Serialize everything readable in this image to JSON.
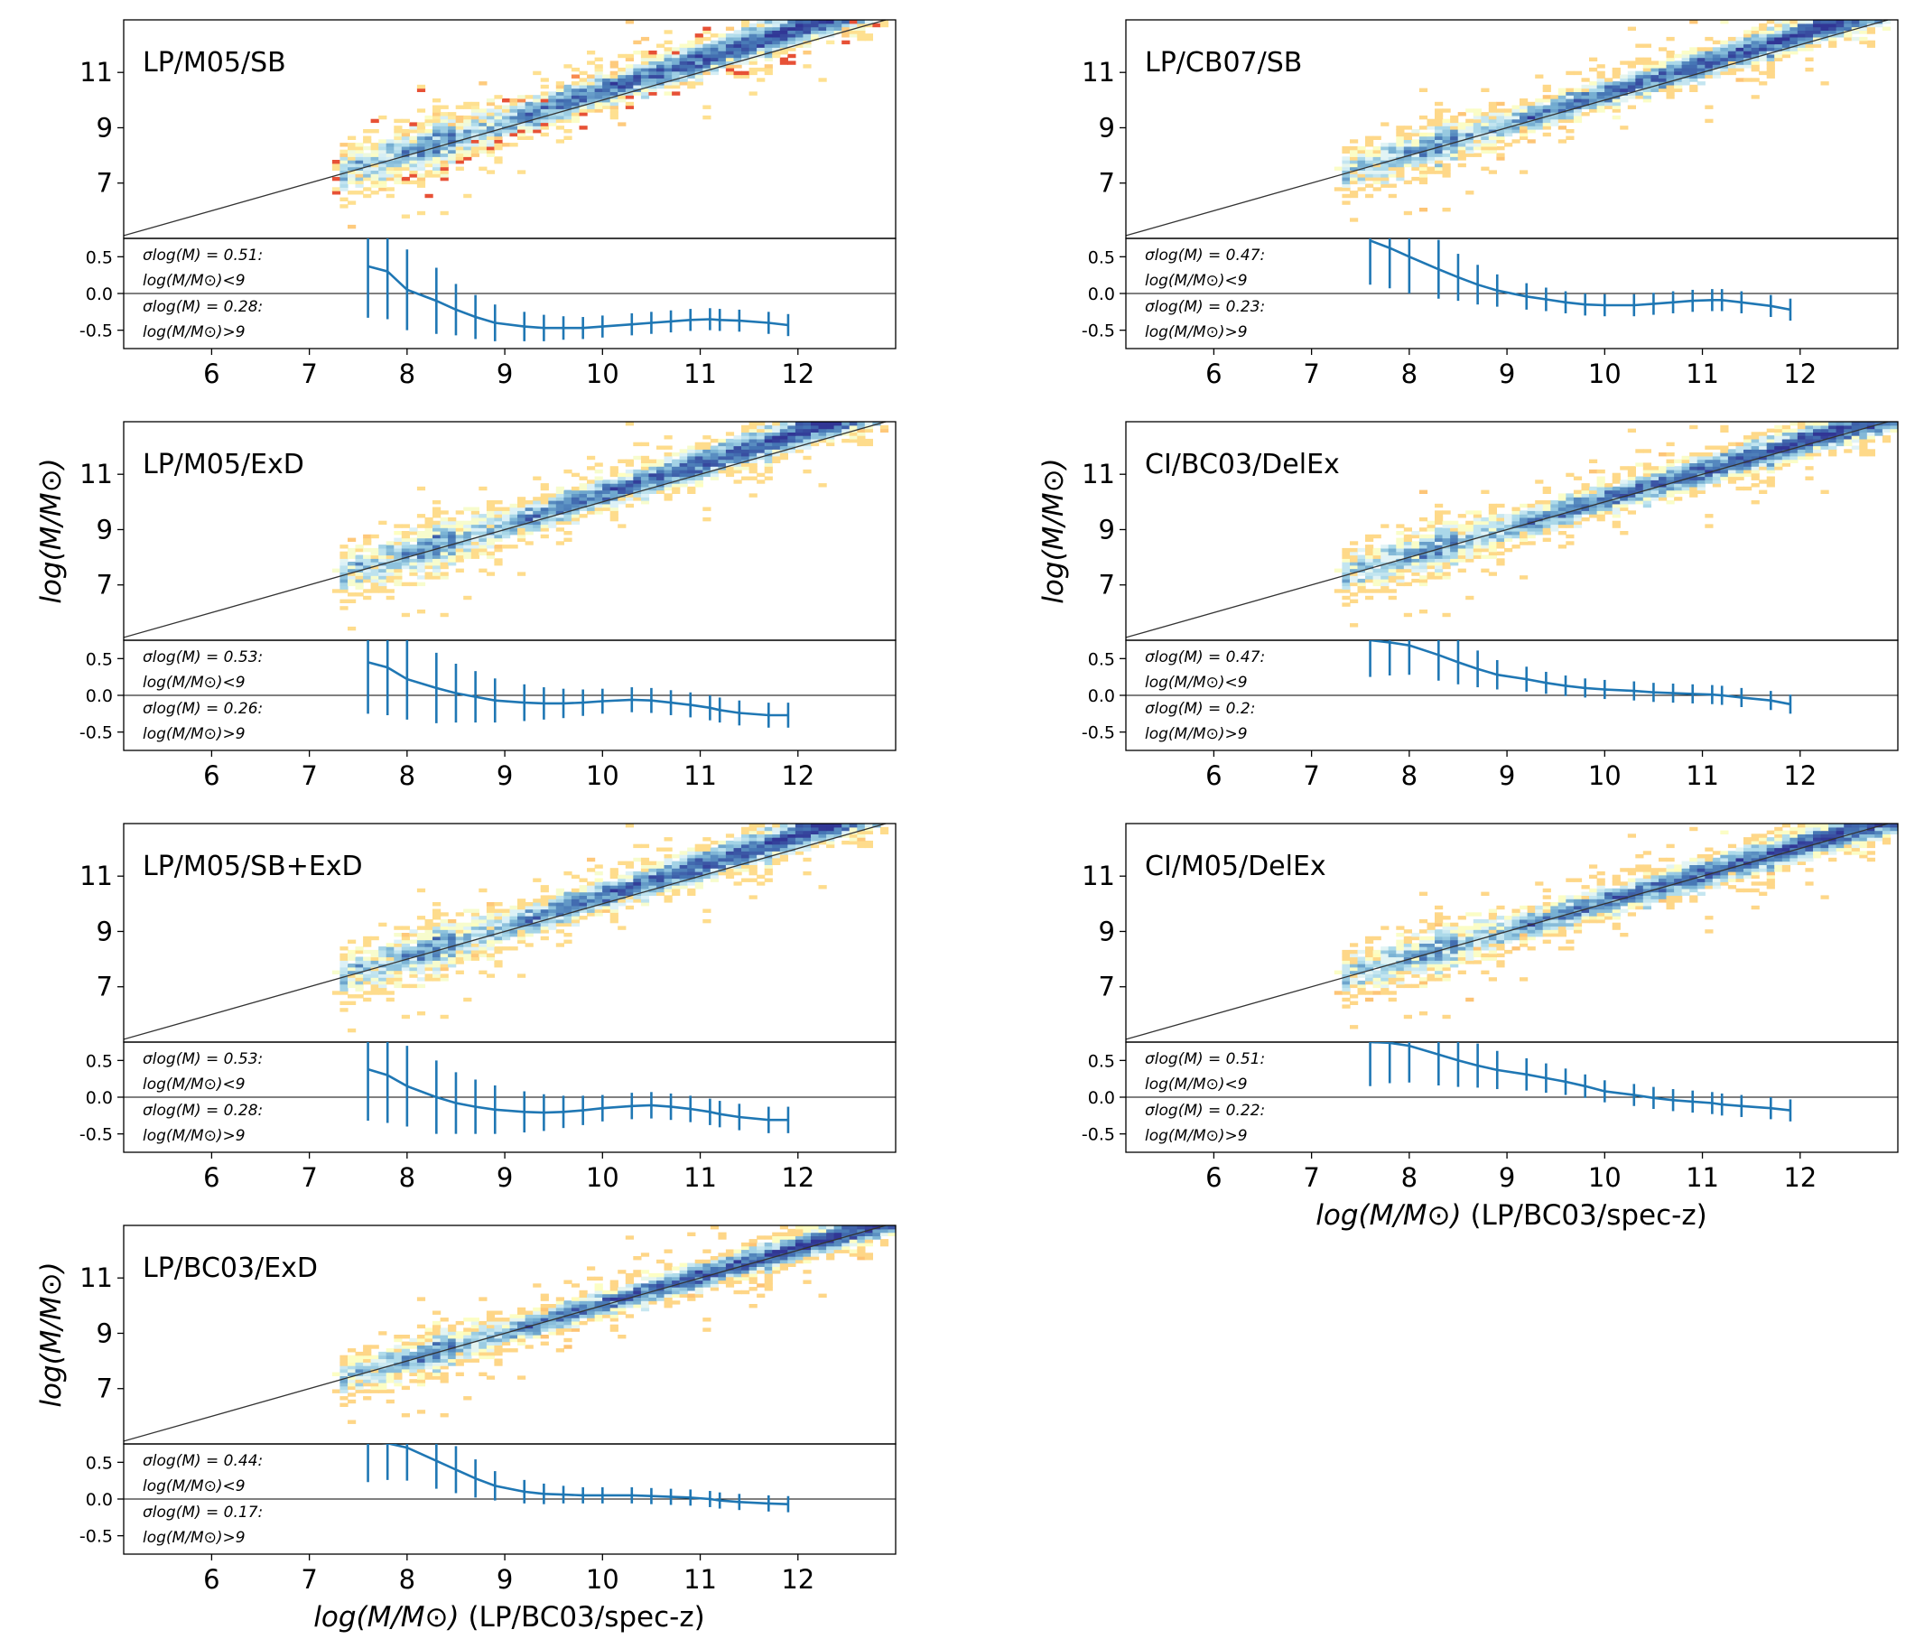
{
  "figure": {
    "ylabel": "log(M/M⊙)",
    "xlabel": "log(M/M⊙) (LP/BC03/spec-z)",
    "main_yticks": [
      "7",
      "9",
      "11"
    ],
    "resid_yticks": [
      "0.5",
      "0.0",
      "-0.5"
    ],
    "xticks": [
      "6",
      "7",
      "8",
      "9",
      "10",
      "11",
      "12"
    ]
  },
  "colors": {
    "errorbar": "#1f77b4",
    "one_to_one": "#333333",
    "density_low": "#a50026",
    "density_mid": "#ffffbf",
    "density_high": "#313695"
  },
  "chart_data": [
    {
      "type": "heatmap",
      "title": "LP/M05/SB",
      "xlim": [
        5.1,
        13.0
      ],
      "ylim_main": [
        5.0,
        12.9
      ],
      "ylim_resid": [
        -0.75,
        0.75
      ],
      "scatter_low": "σlog(M) = 0.51:",
      "scatter_low_cond": "log(M/M⊙)<9",
      "scatter_high": "σlog(M) = 0.28:",
      "scatter_high_cond": "log(M/M⊙)>9",
      "resid_x": [
        7.6,
        7.8,
        8.0,
        8.3,
        8.5,
        8.7,
        8.9,
        9.2,
        9.4,
        9.6,
        9.8,
        10.0,
        10.3,
        10.5,
        10.7,
        10.9,
        11.1,
        11.2,
        11.4,
        11.7,
        11.9
      ],
      "resid_mean": [
        0.37,
        0.3,
        0.05,
        -0.1,
        -0.22,
        -0.32,
        -0.4,
        -0.45,
        -0.47,
        -0.47,
        -0.47,
        -0.45,
        -0.42,
        -0.4,
        -0.38,
        -0.36,
        -0.35,
        -0.36,
        -0.37,
        -0.4,
        -0.43
      ],
      "resid_err": [
        0.7,
        0.65,
        0.55,
        0.45,
        0.35,
        0.3,
        0.25,
        0.2,
        0.18,
        0.16,
        0.15,
        0.15,
        0.15,
        0.15,
        0.15,
        0.15,
        0.15,
        0.15,
        0.15,
        0.15,
        0.15
      ]
    },
    {
      "type": "heatmap",
      "title": "LP/CB07/SB",
      "xlim": [
        5.1,
        13.0
      ],
      "ylim_main": [
        5.0,
        12.9
      ],
      "ylim_resid": [
        -0.75,
        0.75
      ],
      "scatter_low": "σlog(M) = 0.47:",
      "scatter_low_cond": "log(M/M⊙)<9",
      "scatter_high": "σlog(M) = 0.23:",
      "scatter_high_cond": "log(M/M⊙)>9",
      "resid_x": [
        7.6,
        7.8,
        8.0,
        8.3,
        8.5,
        8.7,
        8.9,
        9.2,
        9.4,
        9.6,
        9.8,
        10.0,
        10.3,
        10.5,
        10.7,
        10.9,
        11.1,
        11.2,
        11.4,
        11.7,
        11.9
      ],
      "resid_mean": [
        0.72,
        0.62,
        0.5,
        0.33,
        0.22,
        0.12,
        0.04,
        -0.04,
        -0.08,
        -0.12,
        -0.15,
        -0.16,
        -0.16,
        -0.14,
        -0.12,
        -0.1,
        -0.09,
        -0.09,
        -0.12,
        -0.17,
        -0.22
      ],
      "resid_err": [
        0.6,
        0.55,
        0.5,
        0.4,
        0.32,
        0.27,
        0.22,
        0.18,
        0.16,
        0.15,
        0.15,
        0.15,
        0.15,
        0.15,
        0.15,
        0.15,
        0.15,
        0.15,
        0.15,
        0.15,
        0.15
      ]
    },
    {
      "type": "heatmap",
      "title": "LP/M05/ExD",
      "xlim": [
        5.1,
        13.0
      ],
      "ylim_main": [
        5.0,
        12.9
      ],
      "ylim_resid": [
        -0.75,
        0.75
      ],
      "scatter_low": "σlog(M) = 0.53:",
      "scatter_low_cond": "log(M/M⊙)<9",
      "scatter_high": "σlog(M) = 0.26:",
      "scatter_high_cond": "log(M/M⊙)>9",
      "resid_x": [
        7.6,
        7.8,
        8.0,
        8.3,
        8.5,
        8.7,
        8.9,
        9.2,
        9.4,
        9.6,
        9.8,
        10.0,
        10.3,
        10.5,
        10.7,
        10.9,
        11.1,
        11.2,
        11.4,
        11.7,
        11.9
      ],
      "resid_mean": [
        0.45,
        0.38,
        0.22,
        0.1,
        0.03,
        -0.02,
        -0.07,
        -0.1,
        -0.11,
        -0.11,
        -0.1,
        -0.08,
        -0.06,
        -0.07,
        -0.1,
        -0.13,
        -0.17,
        -0.2,
        -0.24,
        -0.27,
        -0.27
      ],
      "resid_err": [
        0.7,
        0.65,
        0.55,
        0.48,
        0.4,
        0.35,
        0.3,
        0.25,
        0.22,
        0.2,
        0.18,
        0.17,
        0.17,
        0.17,
        0.17,
        0.17,
        0.17,
        0.17,
        0.17,
        0.17,
        0.17
      ]
    },
    {
      "type": "heatmap",
      "title": "CI/BC03/DelEx",
      "xlim": [
        5.1,
        13.0
      ],
      "ylim_main": [
        5.0,
        12.9
      ],
      "ylim_resid": [
        -0.75,
        0.75
      ],
      "scatter_low": "σlog(M) = 0.47:",
      "scatter_low_cond": "log(M/M⊙)<9",
      "scatter_high": "σlog(M) = 0.2:",
      "scatter_high_cond": "log(M/M⊙)>9",
      "resid_x": [
        7.6,
        7.8,
        8.0,
        8.3,
        8.5,
        8.7,
        8.9,
        9.2,
        9.4,
        9.6,
        9.8,
        10.0,
        10.3,
        10.5,
        10.7,
        10.9,
        11.1,
        11.2,
        11.4,
        11.7,
        11.9
      ],
      "resid_mean": [
        0.75,
        0.72,
        0.68,
        0.55,
        0.45,
        0.36,
        0.28,
        0.22,
        0.17,
        0.13,
        0.1,
        0.08,
        0.06,
        0.04,
        0.03,
        0.02,
        0.01,
        0.0,
        -0.03,
        -0.07,
        -0.12
      ],
      "resid_err": [
        0.5,
        0.45,
        0.4,
        0.35,
        0.3,
        0.25,
        0.2,
        0.17,
        0.15,
        0.14,
        0.13,
        0.13,
        0.13,
        0.13,
        0.13,
        0.13,
        0.13,
        0.13,
        0.13,
        0.13,
        0.13
      ]
    },
    {
      "type": "heatmap",
      "title": "LP/M05/SB+ExD",
      "xlim": [
        5.1,
        13.0
      ],
      "ylim_main": [
        5.0,
        12.9
      ],
      "ylim_resid": [
        -0.75,
        0.75
      ],
      "scatter_low": "σlog(M) = 0.53:",
      "scatter_low_cond": "log(M/M⊙)<9",
      "scatter_high": "σlog(M) = 0.28:",
      "scatter_high_cond": "log(M/M⊙)>9",
      "resid_x": [
        7.6,
        7.8,
        8.0,
        8.3,
        8.5,
        8.7,
        8.9,
        9.2,
        9.4,
        9.6,
        9.8,
        10.0,
        10.3,
        10.5,
        10.7,
        10.9,
        11.1,
        11.2,
        11.4,
        11.7,
        11.9
      ],
      "resid_mean": [
        0.38,
        0.3,
        0.15,
        0.0,
        -0.08,
        -0.13,
        -0.17,
        -0.2,
        -0.21,
        -0.2,
        -0.18,
        -0.15,
        -0.12,
        -0.11,
        -0.13,
        -0.16,
        -0.2,
        -0.23,
        -0.27,
        -0.31,
        -0.31
      ],
      "resid_err": [
        0.7,
        0.65,
        0.55,
        0.5,
        0.42,
        0.37,
        0.33,
        0.28,
        0.25,
        0.22,
        0.2,
        0.18,
        0.18,
        0.18,
        0.18,
        0.18,
        0.18,
        0.18,
        0.18,
        0.18,
        0.18
      ]
    },
    {
      "type": "heatmap",
      "title": "CI/M05/DelEx",
      "xlim": [
        5.1,
        13.0
      ],
      "ylim_main": [
        5.0,
        12.9
      ],
      "ylim_resid": [
        -0.75,
        0.75
      ],
      "scatter_low": "σlog(M) = 0.51:",
      "scatter_low_cond": "log(M/M⊙)<9",
      "scatter_high": "σlog(M) = 0.22:",
      "scatter_high_cond": "log(M/M⊙)>9",
      "resid_x": [
        7.6,
        7.8,
        8.0,
        8.3,
        8.5,
        8.7,
        8.9,
        9.2,
        9.4,
        9.6,
        9.8,
        10.0,
        10.3,
        10.5,
        10.7,
        10.9,
        11.1,
        11.2,
        11.4,
        11.7,
        11.9
      ],
      "resid_mean": [
        0.75,
        0.74,
        0.7,
        0.58,
        0.5,
        0.43,
        0.37,
        0.31,
        0.26,
        0.21,
        0.15,
        0.08,
        0.03,
        -0.01,
        -0.04,
        -0.06,
        -0.08,
        -0.1,
        -0.12,
        -0.15,
        -0.18
      ],
      "resid_err": [
        0.6,
        0.55,
        0.5,
        0.42,
        0.36,
        0.3,
        0.26,
        0.22,
        0.2,
        0.18,
        0.16,
        0.15,
        0.15,
        0.15,
        0.15,
        0.15,
        0.15,
        0.15,
        0.15,
        0.15,
        0.15
      ]
    },
    {
      "type": "heatmap",
      "title": "LP/BC03/ExD",
      "xlim": [
        5.1,
        13.0
      ],
      "ylim_main": [
        5.0,
        12.9
      ],
      "ylim_resid": [
        -0.75,
        0.75
      ],
      "scatter_low": "σlog(M) = 0.44:",
      "scatter_low_cond": "log(M/M⊙)<9",
      "scatter_high": "σlog(M) = 0.17:",
      "scatter_high_cond": "log(M/M⊙)>9",
      "resid_x": [
        7.6,
        7.8,
        8.0,
        8.3,
        8.5,
        8.7,
        8.9,
        9.2,
        9.4,
        9.6,
        9.8,
        10.0,
        10.3,
        10.5,
        10.7,
        10.9,
        11.1,
        11.2,
        11.4,
        11.7,
        11.9
      ],
      "resid_mean": [
        0.78,
        0.76,
        0.7,
        0.52,
        0.4,
        0.28,
        0.18,
        0.1,
        0.07,
        0.06,
        0.05,
        0.05,
        0.05,
        0.04,
        0.03,
        0.02,
        0.0,
        -0.02,
        -0.04,
        -0.06,
        -0.07
      ],
      "resid_err": [
        0.55,
        0.5,
        0.45,
        0.38,
        0.32,
        0.26,
        0.2,
        0.16,
        0.14,
        0.12,
        0.11,
        0.11,
        0.11,
        0.11,
        0.11,
        0.11,
        0.11,
        0.11,
        0.11,
        0.11,
        0.11
      ]
    }
  ]
}
